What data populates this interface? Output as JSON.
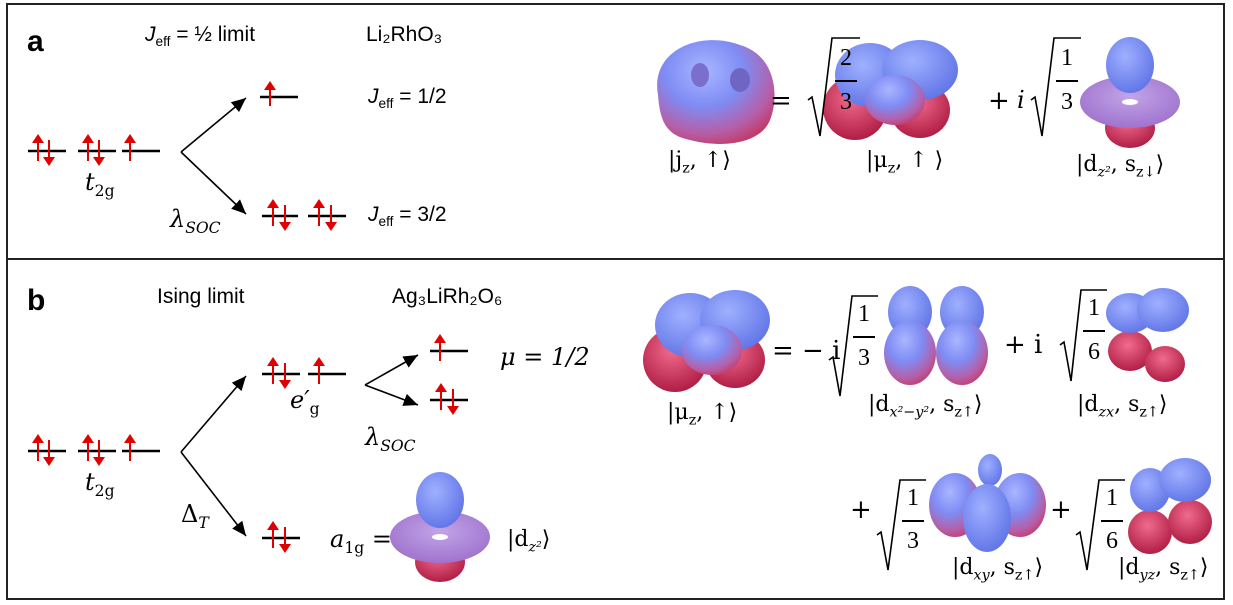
{
  "colors": {
    "arrow": "#e00000",
    "line": "#000000",
    "orbital_top": "#6f86ff",
    "orbital_bottom": "#d4224e"
  },
  "panel_a": {
    "label": "a",
    "limit_title": "= ½ limit",
    "limit_title_prefix": "J",
    "limit_title_sub": "eff",
    "compound": "Li₂RhO₃",
    "t2g": "t",
    "t2g_sub": "2g",
    "lambda": "λ",
    "lambda_sub": "SOC",
    "jeff_half": "= 1/2",
    "jeff_threehalf": "= 3/2",
    "jeff_prefix": "J",
    "jeff_sub": "eff",
    "eq_equals": "=",
    "eq_plus": "+",
    "eq_i": "i",
    "coef1_num": "2",
    "coef1_den": "3",
    "coef2_num": "1",
    "coef2_den": "3",
    "ket_lhs": "|j",
    "ket_lhs_sub": "z",
    "ket_lhs_spin": ", ↑⟩",
    "ket_mid": "|μ",
    "ket_mid_sub": "z",
    "ket_mid_spin": ", ↑ ⟩",
    "ket_right": "|d",
    "ket_right_sub": "z²",
    "ket_right_spin": ", s",
    "ket_right_spin_sub": "z↓",
    "ket_right_close": "⟩"
  },
  "panel_b": {
    "label": "b",
    "limit_title": "Ising limit",
    "compound": "Ag₃LiRh₂O₆",
    "t2g": "t",
    "t2g_sub": "2g",
    "eg": "e′",
    "eg_sub": "g",
    "lambda": "λ",
    "lambda_sub": "SOC",
    "delta": "Δ",
    "delta_sub": "T",
    "mu_half": "μ = 1/2",
    "a1g": "a",
    "a1g_sub": "1g",
    "a1g_eq": "=",
    "dz2_ket": "|d",
    "dz2_ket_sub": "z²",
    "dz2_close": "⟩",
    "eq_equals": "= − i",
    "plus_i": "+ i",
    "plus": "+",
    "coefA_num": "1",
    "coefA_den": "3",
    "coefB_num": "1",
    "coefB_den": "6",
    "coefC_num": "1",
    "coefC_den": "3",
    "coefD_num": "1",
    "coefD_den": "6",
    "ket_mu": "|μ",
    "ket_mu_sub": "z",
    "ket_mu_spin": ", ↑⟩",
    "ket_dx2": "|d",
    "ket_dx2_sub": "x²−y²",
    "ket_dzx_sub": "zx",
    "ket_dxy_sub": "xy",
    "ket_dyz_sub": "yz",
    "ket_spin": ", s",
    "ket_spin_sub": "z↑",
    "ket_close": "⟩"
  }
}
